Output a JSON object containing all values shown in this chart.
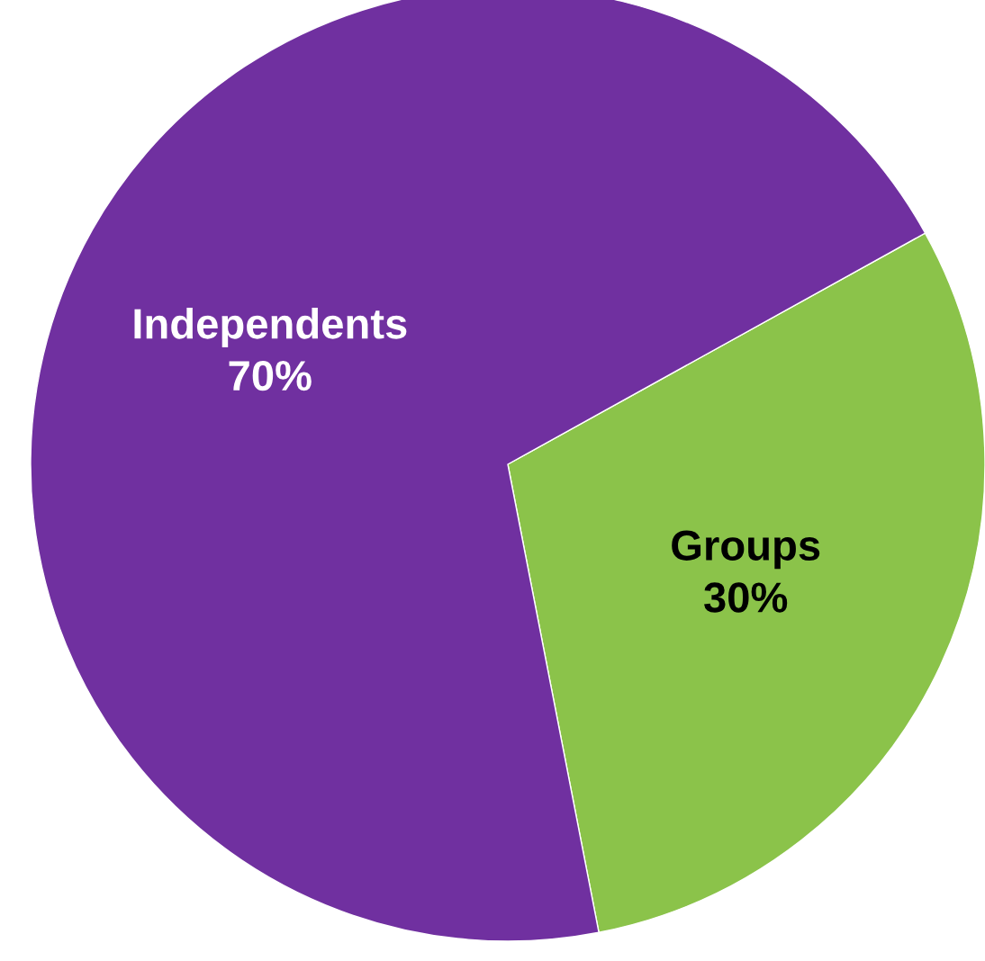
{
  "chart_data": {
    "type": "pie",
    "categories": [
      "Groups",
      "Independents"
    ],
    "values": [
      30,
      70
    ],
    "colors": [
      "#8bc34a",
      "#7030a0"
    ],
    "value_labels": [
      "30%",
      "70%"
    ]
  }
}
